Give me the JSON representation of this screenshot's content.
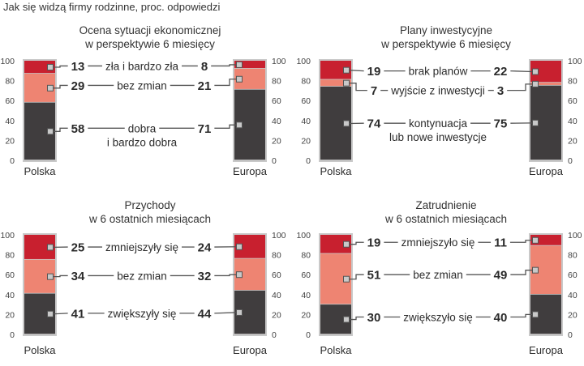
{
  "title": "Jak się widzą firmy rodzinne, proc. odpowiedzi",
  "colors": {
    "top": "#c8202f",
    "middle": "#ee8472",
    "bottom": "#403d3e",
    "frame": "#c9c9c9",
    "line": "#555555"
  },
  "chart_data": [
    {
      "type": "bar",
      "title": [
        "Ocena sytuacji ekonomicznej",
        "w perspektywie 6 miesięcy"
      ],
      "categories": [
        "Polska",
        "Europa"
      ],
      "ylim": [
        0,
        100
      ],
      "yticks": [
        "0",
        "20",
        "40",
        "60",
        "80",
        "100"
      ],
      "series": [
        {
          "name": [
            "zła i bardzo zła"
          ],
          "values": [
            13,
            8
          ]
        },
        {
          "name": [
            "bez zmian"
          ],
          "values": [
            29,
            21
          ]
        },
        {
          "name": [
            "dobra",
            "i bardzo dobra"
          ],
          "values": [
            58,
            71
          ]
        }
      ]
    },
    {
      "type": "bar",
      "title": [
        "Plany inwestycyjne",
        "w perspektywie 6 miesięcy"
      ],
      "categories": [
        "Polska",
        "Europa"
      ],
      "ylim": [
        0,
        100
      ],
      "yticks": [
        "0",
        "20",
        "40",
        "60",
        "80",
        "100"
      ],
      "series": [
        {
          "name": [
            "brak planów"
          ],
          "values": [
            19,
            22
          ]
        },
        {
          "name": [
            "wyjście z inwestycji"
          ],
          "values": [
            7,
            3
          ]
        },
        {
          "name": [
            "kontynuacja",
            "lub nowe inwestycje"
          ],
          "values": [
            74,
            75
          ]
        }
      ]
    },
    {
      "type": "bar",
      "title": [
        "Przychody",
        "w 6 ostatnich miesiącach"
      ],
      "categories": [
        "Polska",
        "Europa"
      ],
      "ylim": [
        0,
        100
      ],
      "yticks": [
        "0",
        "20",
        "40",
        "60",
        "80",
        "100"
      ],
      "series": [
        {
          "name": [
            "zmniejszyły się"
          ],
          "values": [
            25,
            24
          ]
        },
        {
          "name": [
            "bez zmian"
          ],
          "values": [
            34,
            32
          ]
        },
        {
          "name": [
            "zwiększyły się"
          ],
          "values": [
            41,
            44
          ]
        }
      ]
    },
    {
      "type": "bar",
      "title": [
        "Zatrudnienie",
        "w  6 ostatnich miesiącach"
      ],
      "categories": [
        "Polska",
        "Europa"
      ],
      "ylim": [
        0,
        100
      ],
      "yticks": [
        "0",
        "20",
        "40",
        "60",
        "80",
        "100"
      ],
      "series": [
        {
          "name": [
            "zmniejszyło się"
          ],
          "values": [
            19,
            11
          ]
        },
        {
          "name": [
            "bez zmian"
          ],
          "values": [
            51,
            49
          ]
        },
        {
          "name": [
            "zwiększyło się"
          ],
          "values": [
            30,
            40
          ]
        }
      ]
    }
  ]
}
